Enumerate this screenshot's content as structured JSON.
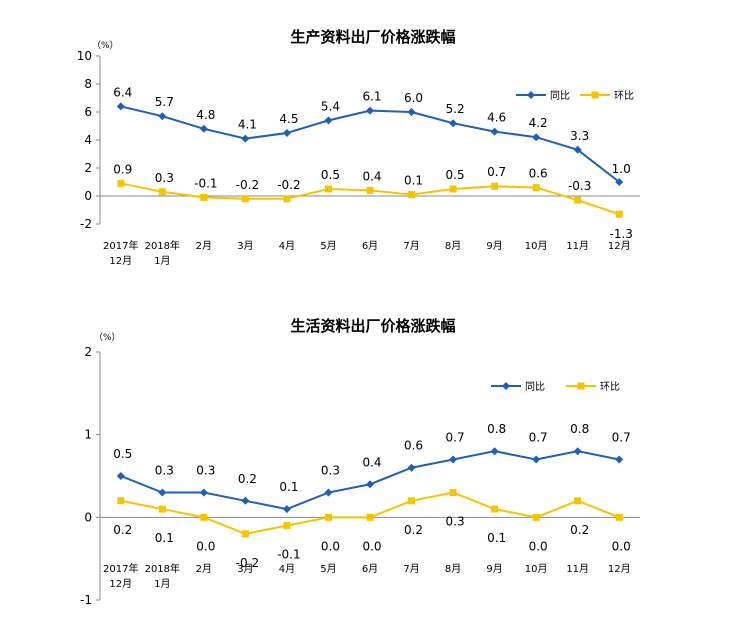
{
  "chart_data": [
    {
      "type": "line",
      "title": "生产资料出厂价格涨跌幅",
      "unit": "（%）",
      "ylim": [
        -2,
        10
      ],
      "yticks": [
        -2,
        0,
        2,
        4,
        6,
        8,
        10
      ],
      "grid": false,
      "legend_position": "top-right",
      "categories": [
        [
          "2017年",
          "12月"
        ],
        [
          "2018年",
          "1月"
        ],
        [
          "2月"
        ],
        [
          "3月"
        ],
        [
          "4月"
        ],
        [
          "5月"
        ],
        [
          "6月"
        ],
        [
          "7月"
        ],
        [
          "8月"
        ],
        [
          "9月"
        ],
        [
          "10月"
        ],
        [
          "11月"
        ],
        [
          "12月"
        ]
      ],
      "series": [
        {
          "name": "同比",
          "color": "#1f5fb4",
          "marker": "diamond",
          "values": [
            6.4,
            5.7,
            4.8,
            4.1,
            4.5,
            5.4,
            6.1,
            6.0,
            5.2,
            4.6,
            4.2,
            3.3,
            1.0
          ],
          "labels": [
            "6.4",
            "5.7",
            "4.8",
            "4.1",
            "4.5",
            "5.4",
            "6.1",
            "6.0",
            "5.2",
            "4.6",
            "4.2",
            "3.3",
            "1.0"
          ]
        },
        {
          "name": "环比",
          "color": "#f5c400",
          "marker": "square",
          "values": [
            0.9,
            0.3,
            -0.1,
            -0.2,
            -0.2,
            0.5,
            0.4,
            0.1,
            0.5,
            0.7,
            0.6,
            -0.3,
            -1.3
          ],
          "labels": [
            "0.9",
            "0.3",
            "-0.1",
            "-0.2",
            "-0.2",
            "0.5",
            "0.4",
            "0.1",
            "0.5",
            "0.7",
            "0.6",
            "-0.3",
            "-1.3"
          ]
        }
      ]
    },
    {
      "type": "line",
      "title": "生活资料出厂价格涨跌幅",
      "unit": "（%）",
      "ylim": [
        -1,
        2
      ],
      "yticks": [
        -1,
        0,
        1,
        2
      ],
      "grid": false,
      "legend_position": "top-right",
      "categories": [
        [
          "2017年",
          "12月"
        ],
        [
          "2018年",
          "1月"
        ],
        [
          "2月"
        ],
        [
          "3月"
        ],
        [
          "4月"
        ],
        [
          "5月"
        ],
        [
          "6月"
        ],
        [
          "7月"
        ],
        [
          "8月"
        ],
        [
          "9月"
        ],
        [
          "10月"
        ],
        [
          "11月"
        ],
        [
          "12月"
        ]
      ],
      "series": [
        {
          "name": "同比",
          "color": "#1f5fb4",
          "marker": "diamond",
          "values": [
            0.5,
            0.3,
            0.3,
            0.2,
            0.1,
            0.3,
            0.4,
            0.6,
            0.7,
            0.8,
            0.7,
            0.8,
            0.7
          ],
          "labels": [
            "0.5",
            "0.3",
            "0.3",
            "0.2",
            "0.1",
            "0.3",
            "0.4",
            "0.6",
            "0.7",
            "0.8",
            "0.7",
            "0.8",
            "0.7"
          ]
        },
        {
          "name": "环比",
          "color": "#f5c400",
          "marker": "square",
          "values": [
            0.2,
            0.1,
            0.0,
            -0.2,
            -0.1,
            0.0,
            0.0,
            0.2,
            0.3,
            0.1,
            0.0,
            0.2,
            0.0
          ],
          "labels": [
            "0.2",
            "0.1",
            "0.0",
            "-0.2",
            "-0.1",
            "0.0",
            "0.0",
            "0.2",
            "0.3",
            "0.1",
            "0.0",
            "0.2",
            "0.0"
          ]
        }
      ]
    }
  ]
}
